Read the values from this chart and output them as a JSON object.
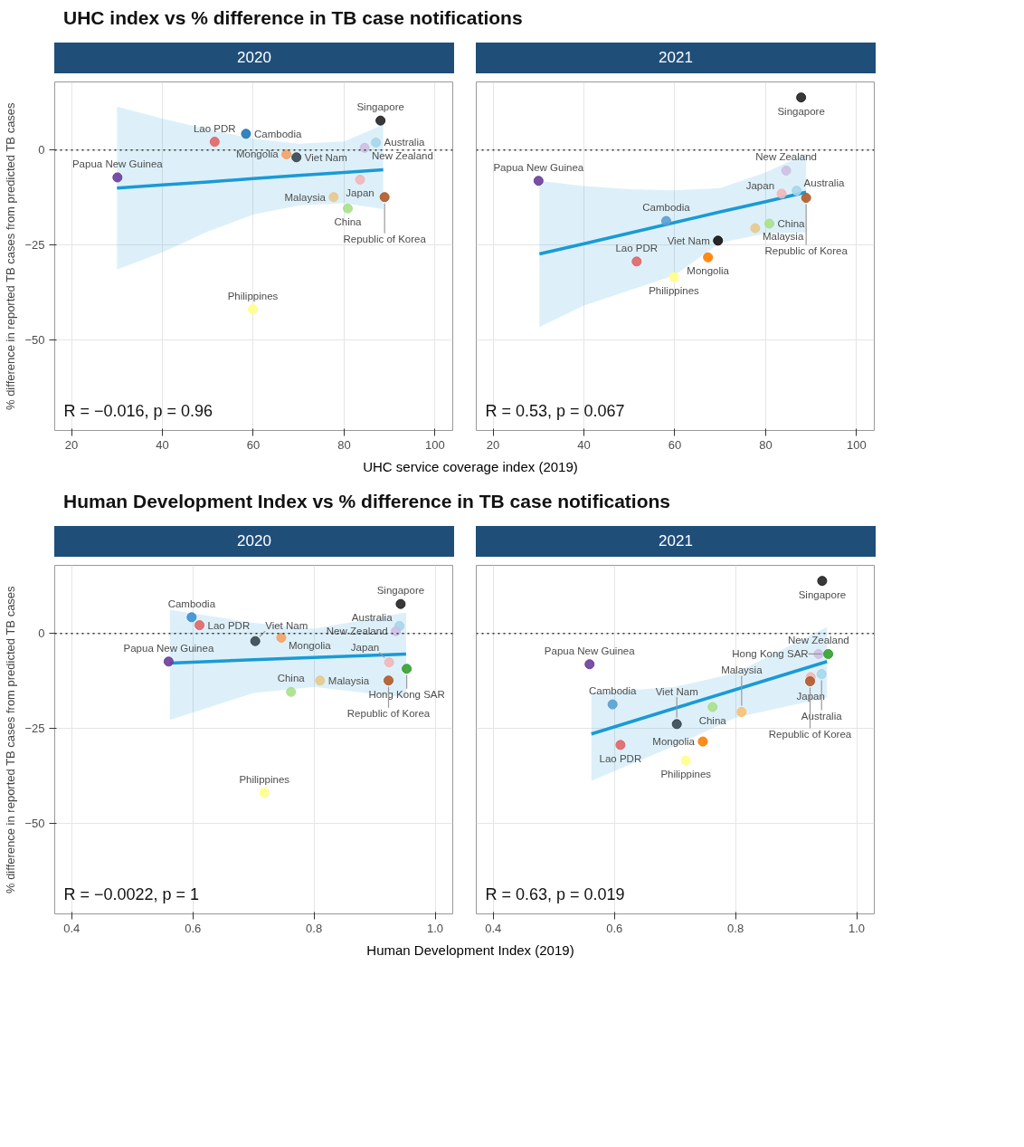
{
  "chart_data": [
    {
      "type": "scatter",
      "title": "UHC index vs % difference in TB case notifications",
      "subtitle": "2020",
      "xlabel": "UHC service coverage index (2019)",
      "ylabel": "% difference in reported TB cases from predicted TB cases",
      "xlim": [
        16.3,
        103.9
      ],
      "ylim": [
        -74,
        18
      ],
      "xticks": [
        20,
        40,
        60,
        80,
        100
      ],
      "yticks": [
        -50,
        -25,
        0
      ],
      "grid": true,
      "legend": false,
      "marker": "circle",
      "data_labels": false,
      "ref_lines": [
        {
          "axis": "y",
          "value": 0,
          "line_style": "dotted",
          "color": "#333333"
        }
      ],
      "annotations": [
        "R = −0.016, p = 0.96"
      ],
      "series": [
        {
          "type": "line",
          "marker": "none",
          "color": "#1a9ad6",
          "x": [
            30,
            40,
            50,
            60,
            70,
            80,
            88.6
          ],
          "values": [
            -10,
            -9.2,
            -8.4,
            -7.5,
            -6.7,
            -5.9,
            -5.2
          ],
          "lower": [
            -31.5,
            -27,
            -21.5,
            -17,
            -14.6,
            -14,
            -15.6
          ],
          "upper": [
            11.5,
            8.3,
            5.5,
            3,
            1.7,
            2.3,
            6.7
          ]
        },
        {
          "name": "Papua New Guinea",
          "color": "#6a3d9a",
          "x": [
            30.1
          ],
          "values": [
            -7.2
          ]
        },
        {
          "name": "Lao PDR",
          "color": "#e06666",
          "x": [
            51.5
          ],
          "values": [
            2.2
          ]
        },
        {
          "name": "Cambodia",
          "color": "#1f78b4",
          "x": [
            58.4
          ],
          "values": [
            4.3
          ]
        },
        {
          "name": "Mongolia",
          "color": "#f4a261",
          "x": [
            67.3
          ],
          "values": [
            -1.1
          ]
        },
        {
          "name": "Viet Nam",
          "color": "#37474f",
          "x": [
            69.5
          ],
          "values": [
            -1.9
          ]
        },
        {
          "name": "Philippines",
          "color": "#ffff88",
          "x": [
            59.9
          ],
          "values": [
            -42
          ]
        },
        {
          "name": "Malaysia",
          "color": "#e6c98f",
          "x": [
            77.7
          ],
          "values": [
            -12.4
          ]
        },
        {
          "name": "China",
          "color": "#a8e08a",
          "x": [
            80.8
          ],
          "values": [
            -15.4
          ]
        },
        {
          "name": "Japan",
          "color": "#f2b6b8",
          "x": [
            83.5
          ],
          "values": [
            -7.8
          ]
        },
        {
          "name": "New Zealand",
          "color": "#cdbfe3",
          "x": [
            84.5
          ],
          "values": [
            0.6
          ]
        },
        {
          "name": "Australia",
          "color": "#a6d6ea",
          "x": [
            87
          ],
          "values": [
            2
          ]
        },
        {
          "name": "Singapore",
          "color": "#222222",
          "x": [
            88
          ],
          "values": [
            7.8
          ]
        },
        {
          "name": "Republic of Korea",
          "color": "#b15928",
          "x": [
            88.9
          ],
          "values": [
            -12.4
          ]
        }
      ]
    },
    {
      "type": "scatter",
      "subtitle": "2021",
      "xlim": [
        16.3,
        103.9
      ],
      "ylim": [
        -74,
        18
      ],
      "xticks": [
        20,
        40,
        60,
        80,
        100
      ],
      "yticks": [
        -50,
        -25,
        0
      ],
      "grid": true,
      "legend": false,
      "marker": "circle",
      "tick_labels": "x",
      "data_labels": false,
      "ref_lines": [
        {
          "axis": "y",
          "value": 0,
          "line_style": "dotted",
          "color": "#333333"
        }
      ],
      "annotations": [
        "R = 0.53, p = 0.067"
      ],
      "series": [
        {
          "type": "line",
          "marker": "none",
          "color": "#1a9ad6",
          "x": [
            30.2,
            40,
            50,
            60,
            70,
            80,
            88.9
          ],
          "values": [
            -27.4,
            -24.7,
            -21.9,
            -19.1,
            -16.3,
            -13.6,
            -11.1
          ],
          "lower": [
            -46.7,
            -41,
            -37,
            -33,
            -24.4,
            -22,
            -21.7
          ],
          "upper": [
            -8.1,
            -9.5,
            -10.3,
            -10.6,
            -10,
            -5.9,
            -0.9
          ]
        },
        {
          "name": "Singapore",
          "color": "#222222",
          "x": [
            87.8
          ],
          "values": [
            13.9
          ]
        },
        {
          "name": "Papua New Guinea",
          "color": "#6a3d9a",
          "x": [
            30
          ],
          "values": [
            -8.1
          ]
        },
        {
          "name": "New Zealand",
          "color": "#cdbfe3",
          "x": [
            84.5
          ],
          "values": [
            -5.4
          ]
        },
        {
          "name": "Japan",
          "color": "#f2b6b8",
          "x": [
            83.5
          ],
          "values": [
            -11.5
          ]
        },
        {
          "name": "Australia",
          "color": "#a6d6ea",
          "x": [
            86.8
          ],
          "values": [
            -10.7
          ]
        },
        {
          "name": "Republic of Korea",
          "color": "#b15928",
          "x": [
            88.9
          ],
          "values": [
            -12.6
          ]
        },
        {
          "name": "China",
          "color": "#a8e08a",
          "x": [
            80.8
          ],
          "values": [
            -19.4
          ]
        },
        {
          "name": "Malaysia",
          "color": "#e6c98f",
          "x": [
            77.7
          ],
          "values": [
            -20.6
          ]
        },
        {
          "name": "Cambodia",
          "color": "#5a9fd0",
          "x": [
            58.1
          ],
          "values": [
            -18.7
          ]
        },
        {
          "name": "Viet Nam",
          "color": "#111111",
          "x": [
            69.5
          ],
          "values": [
            -23.9
          ]
        },
        {
          "name": "Mongolia",
          "color": "#ff7f00",
          "x": [
            67.3
          ],
          "values": [
            -28.3
          ]
        },
        {
          "name": "Lao PDR",
          "color": "#e06666",
          "x": [
            51.6
          ],
          "values": [
            -29.4
          ]
        },
        {
          "name": "Philippines",
          "color": "#ffff88",
          "x": [
            59.8
          ],
          "values": [
            -33.5
          ]
        }
      ]
    },
    {
      "type": "scatter",
      "title": "Human Development Index vs % difference in TB case notifications",
      "subtitle": "2020",
      "xlabel": "Human Development Index (2019)",
      "ylabel": "% difference in reported TB cases from predicted TB cases",
      "xlim": [
        0.372,
        1.029
      ],
      "ylim": [
        -74,
        18
      ],
      "xticks": [
        0.4,
        0.6,
        0.8,
        {
          "value": 1.0,
          "label": "1.0"
        }
      ],
      "yticks": [
        -50,
        -25,
        0
      ],
      "grid": true,
      "legend": false,
      "marker": "circle",
      "data_labels": false,
      "ref_lines": [
        {
          "axis": "y",
          "value": 0,
          "line_style": "dotted",
          "color": "#333333"
        }
      ],
      "annotations": [
        "R = −0.0022, p = 1"
      ],
      "series": [
        {
          "type": "line",
          "marker": "none",
          "color": "#1a9ad6",
          "x": [
            0.562,
            0.7,
            0.8,
            0.952
          ],
          "values": [
            -7.8,
            -6.9,
            -6.3,
            -5.4
          ],
          "lower": [
            -22.8,
            -15.7,
            -14.1,
            -16.9
          ],
          "upper": [
            6.3,
            2.8,
            1.3,
            5.6
          ]
        },
        {
          "name": "Papua New Guinea",
          "color": "#6a3d9a",
          "x": [
            0.56
          ],
          "values": [
            -7.4
          ]
        },
        {
          "name": "Cambodia",
          "color": "#3b8fd0",
          "x": [
            0.598
          ],
          "values": [
            4.3
          ]
        },
        {
          "name": "Lao PDR",
          "color": "#e06666",
          "x": [
            0.611
          ],
          "values": [
            2.2
          ]
        },
        {
          "name": "Viet Nam",
          "color": "#37474f",
          "x": [
            0.703
          ],
          "values": [
            -2
          ]
        },
        {
          "name": "Mongolia",
          "color": "#f4a261",
          "x": [
            0.746
          ],
          "values": [
            -1.1
          ]
        },
        {
          "name": "Philippines",
          "color": "#ffff88",
          "x": [
            0.718
          ],
          "values": [
            -42
          ]
        },
        {
          "name": "Malaysia",
          "color": "#e6c98f",
          "x": [
            0.81
          ],
          "values": [
            -12.4
          ]
        },
        {
          "name": "China",
          "color": "#a8e08a",
          "x": [
            0.762
          ],
          "values": [
            -15.4
          ]
        },
        {
          "name": "Singapore",
          "color": "#222222",
          "x": [
            0.943
          ],
          "values": [
            7.8
          ]
        },
        {
          "name": "Australia",
          "color": "#a6d6ea",
          "x": [
            0.941
          ],
          "values": [
            2
          ]
        },
        {
          "name": "New Zealand",
          "color": "#cdbfe3",
          "x": [
            0.935
          ],
          "values": [
            0.6
          ]
        },
        {
          "name": "Japan",
          "color": "#f2b6b8",
          "x": [
            0.924
          ],
          "values": [
            -7.6
          ]
        },
        {
          "name": "Hong Kong SAR",
          "color": "#33a02c",
          "x": [
            0.953
          ],
          "values": [
            -9.3
          ]
        },
        {
          "name": "Republic of Korea",
          "color": "#b15928",
          "x": [
            0.923
          ],
          "values": [
            -12.4
          ]
        }
      ]
    },
    {
      "type": "scatter",
      "subtitle": "2021",
      "xlim": [
        0.372,
        1.029
      ],
      "ylim": [
        -74,
        18
      ],
      "xticks": [
        0.4,
        0.6,
        0.8,
        {
          "value": 1.0,
          "label": "1.0"
        }
      ],
      "yticks": [
        -50,
        -25,
        0
      ],
      "grid": true,
      "legend": false,
      "marker": "circle",
      "tick_labels": "x",
      "data_labels": false,
      "ref_lines": [
        {
          "axis": "y",
          "value": 0,
          "line_style": "dotted",
          "color": "#333333"
        }
      ],
      "annotations": [
        "R = 0.63, p = 0.019"
      ],
      "series": [
        {
          "type": "line",
          "marker": "none",
          "color": "#1a9ad6",
          "x": [
            0.562,
            0.7,
            0.8,
            0.951
          ],
          "values": [
            -26.5,
            -19.7,
            -14.8,
            -7.4
          ],
          "lower": [
            -38.9,
            -29.6,
            -22.2,
            -16.9
          ],
          "upper": [
            -15.7,
            -14.1,
            -10.4,
            1.7
          ]
        },
        {
          "name": "Singapore",
          "color": "#222222",
          "x": [
            0.943
          ],
          "values": [
            13.9
          ]
        },
        {
          "name": "Papua New Guinea",
          "color": "#6a3d9a",
          "x": [
            0.559
          ],
          "values": [
            -8.1
          ]
        },
        {
          "name": "New Zealand",
          "color": "#cdbfe3",
          "x": [
            0.937
          ],
          "values": [
            -5.4
          ]
        },
        {
          "name": "Hong Kong SAR",
          "color": "#33a02c",
          "x": [
            0.953
          ],
          "values": [
            -5.4
          ]
        },
        {
          "name": "Japan",
          "color": "#f2b6b8",
          "x": [
            0.924
          ],
          "values": [
            -11.5
          ]
        },
        {
          "name": "Australia",
          "color": "#a6d6ea",
          "x": [
            0.942
          ],
          "values": [
            -10.7
          ]
        },
        {
          "name": "Republic of Korea",
          "color": "#b15928",
          "x": [
            0.923
          ],
          "values": [
            -12.6
          ]
        },
        {
          "name": "China",
          "color": "#a8e08a",
          "x": [
            0.762
          ],
          "values": [
            -19.4
          ]
        },
        {
          "name": "Malaysia",
          "color": "#fdbf6f",
          "x": [
            0.81
          ],
          "values": [
            -20.7
          ]
        },
        {
          "name": "Cambodia",
          "color": "#5a9fd0",
          "x": [
            0.597
          ],
          "values": [
            -18.7
          ]
        },
        {
          "name": "Viet Nam",
          "color": "#37474f",
          "x": [
            0.703
          ],
          "values": [
            -23.9
          ]
        },
        {
          "name": "Mongolia",
          "color": "#ff7f00",
          "x": [
            0.746
          ],
          "values": [
            -28.5
          ]
        },
        {
          "name": "Lao PDR",
          "color": "#e06666",
          "x": [
            0.61
          ],
          "values": [
            -29.4
          ]
        },
        {
          "name": "Philippines",
          "color": "#ffff88",
          "x": [
            0.718
          ],
          "values": [
            -33.5
          ]
        }
      ]
    }
  ]
}
